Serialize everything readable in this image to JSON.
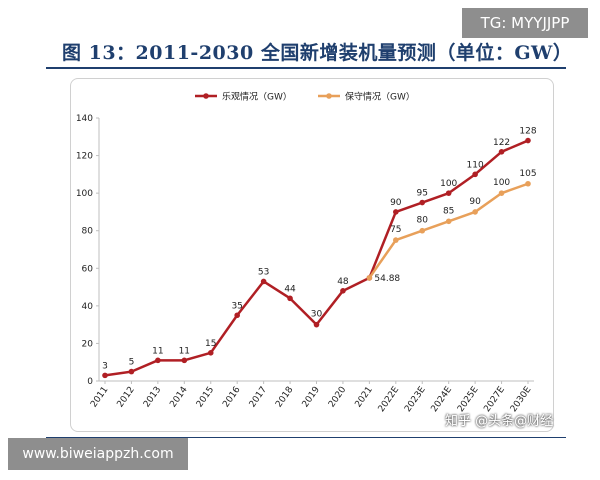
{
  "header": {
    "title": "图 13：2011-2030 全国新增装机量预测（单位：GW）"
  },
  "watermarks": {
    "telegram": "TG: MYYJJPP",
    "url": "www.biweiappzh.com",
    "source": "知乎 @头条@财经"
  },
  "colors": {
    "optimistic": "#b01f24",
    "conservative": "#e8a05a",
    "axis": "#bfbfbf",
    "title": "#1f3f6e"
  },
  "chart_data": {
    "type": "line",
    "categories": [
      "2011",
      "2012",
      "2013",
      "2014",
      "2015",
      "2016",
      "2017",
      "2018",
      "2019",
      "2020",
      "2021",
      "2022E",
      "2023E",
      "2024E",
      "2025E",
      "2027E",
      "2030E"
    ],
    "ylim": [
      0,
      140
    ],
    "yticks": [
      "0",
      "20",
      "40",
      "60",
      "80",
      "100",
      "120",
      "140"
    ],
    "legend_position": "top",
    "series": [
      {
        "name": "乐观情况（GW）",
        "color": "#b01f24",
        "values": [
          3,
          5,
          11,
          11,
          15,
          35,
          53,
          44,
          30,
          48,
          54.88,
          90,
          95,
          100,
          110,
          122,
          128
        ],
        "labels": [
          "3",
          "5",
          "11",
          "11",
          "15",
          "35",
          "53",
          "44",
          "30",
          "48",
          "54.88",
          "90",
          "95",
          "100",
          "110",
          "122",
          "128"
        ]
      },
      {
        "name": "保守情况（GW）",
        "color": "#e8a05a",
        "values": [
          null,
          null,
          null,
          null,
          null,
          null,
          null,
          null,
          null,
          null,
          54.88,
          75,
          80,
          85,
          90,
          100,
          105
        ],
        "labels": [
          "",
          "",
          "",
          "",
          "",
          "",
          "",
          "",
          "",
          "",
          "",
          "75",
          "80",
          "85",
          "90",
          "100",
          "105"
        ]
      }
    ]
  }
}
